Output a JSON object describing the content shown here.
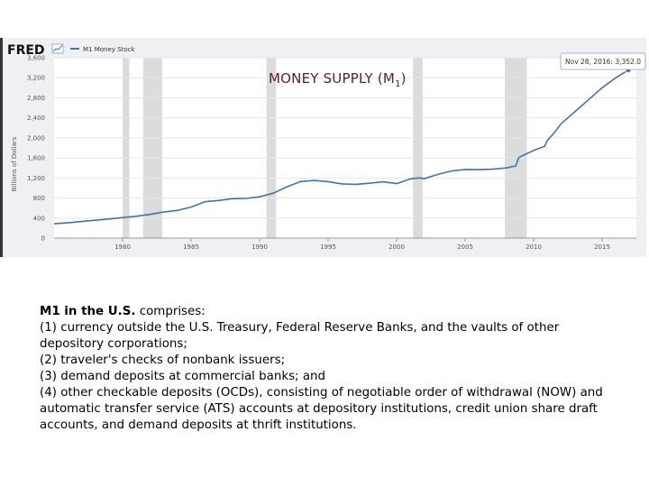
{
  "chart_data": {
    "type": "line",
    "title": "MONEY SUPPLY (M",
    "title_subscript": "1",
    "title_close": ")",
    "brand": "FRED",
    "legend": [
      "M1 Money Stock"
    ],
    "ylabel": "Billions of Dollars",
    "xlabel": "",
    "x_ticks": [
      "1980",
      "1985",
      "1990",
      "1995",
      "2000",
      "2005",
      "2010",
      "2015"
    ],
    "y_ticks": [
      "0",
      "400",
      "800",
      "1,200",
      "1,600",
      "2,000",
      "2,400",
      "2,800",
      "3,200",
      "3,600"
    ],
    "xlim": [
      1975.0,
      2017.5
    ],
    "ylim": [
      0,
      3600
    ],
    "tooltip": "Nov 28, 2016: 3,352.0",
    "recessions": [
      [
        1980.0,
        1980.5
      ],
      [
        1981.5,
        1982.9
      ],
      [
        1990.5,
        1991.2
      ],
      [
        2001.2,
        2001.9
      ],
      [
        2007.9,
        2009.5
      ]
    ],
    "series": [
      {
        "name": "M1 Money Stock",
        "color": "#4572a7",
        "x": [
          1975,
          1976,
          1977,
          1978,
          1979,
          1980,
          1981,
          1982,
          1983,
          1984,
          1985,
          1986,
          1987,
          1988,
          1989,
          1990,
          1991,
          1992,
          1993,
          1994,
          1995,
          1996,
          1997,
          1998,
          1999,
          2000,
          2001,
          2001.7,
          2002,
          2003,
          2004,
          2005,
          2006,
          2007,
          2008,
          2008.7,
          2008.9,
          2009,
          2010,
          2010.8,
          2011,
          2011.5,
          2012,
          2013,
          2014,
          2015,
          2016,
          2016.9
        ],
        "values": [
          287,
          305,
          331,
          357,
          382,
          408,
          436,
          474,
          521,
          552,
          620,
          725,
          750,
          787,
          792,
          824,
          897,
          1025,
          1129,
          1150,
          1127,
          1081,
          1072,
          1095,
          1123,
          1087,
          1180,
          1202,
          1185,
          1270,
          1340,
          1370,
          1367,
          1375,
          1400,
          1440,
          1600,
          1620,
          1750,
          1830,
          1950,
          2100,
          2280,
          2520,
          2760,
          3000,
          3200,
          3352
        ]
      }
    ]
  },
  "text": {
    "lead_bold": "M1 in the U.S.",
    "lead_rest": " comprises:",
    "line1": "(1) currency outside the U.S. Treasury, Federal Reserve Banks, and the vaults of other depository corporations;",
    "line2": "(2) traveler's checks of nonbank issuers;",
    "line3": "(3) demand deposits at commercial banks; and",
    "line4": "(4) other checkable deposits (OCDs), consisting of negotiable order of withdrawal (NOW) and automatic transfer service (ATS) accounts at depository institutions, credit union share draft accounts, and demand deposits at thrift institutions."
  }
}
